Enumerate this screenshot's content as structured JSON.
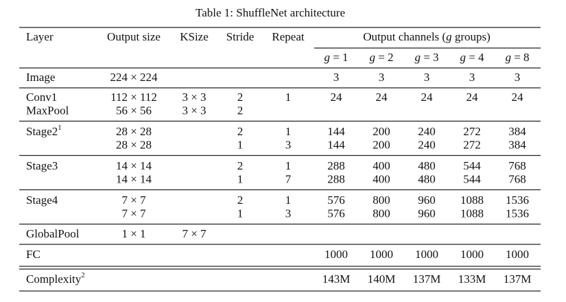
{
  "title": "Table 1: ShuffleNet architecture",
  "header": {
    "columns": [
      "Layer",
      "Output size",
      "KSize",
      "Stride",
      "Repeat"
    ],
    "group": {
      "pre": "Output channels (",
      "var": "g",
      "post": " groups)"
    },
    "subcolumns": [
      {
        "var": "g",
        "rest": " = 1"
      },
      {
        "var": "g",
        "rest": " = 2"
      },
      {
        "var": "g",
        "rest": " = 3"
      },
      {
        "var": "g",
        "rest": " = 4"
      },
      {
        "var": "g",
        "rest": " = 8"
      }
    ]
  },
  "body": [
    [
      [
        "Image",
        "224 × 224",
        null,
        null,
        null,
        "3",
        "3",
        "3",
        "3",
        "3"
      ]
    ],
    [
      [
        "Conv1",
        "112 × 112",
        "3 × 3",
        "2",
        "1",
        "24",
        "24",
        "24",
        "24",
        "24"
      ],
      [
        "MaxPool",
        "56 × 56",
        "3 × 3",
        "2",
        null,
        null,
        null,
        null,
        null,
        null
      ]
    ],
    [
      [
        {
          "text": "Stage2",
          "sup": "1"
        },
        "28 × 28",
        null,
        "2",
        "1",
        "144",
        "200",
        "240",
        "272",
        "384"
      ],
      [
        null,
        "28 × 28",
        null,
        "1",
        "3",
        "144",
        "200",
        "240",
        "272",
        "384"
      ]
    ],
    [
      [
        "Stage3",
        "14 × 14",
        null,
        "2",
        "1",
        "288",
        "400",
        "480",
        "544",
        "768"
      ],
      [
        null,
        "14 × 14",
        null,
        "1",
        "7",
        "288",
        "400",
        "480",
        "544",
        "768"
      ]
    ],
    [
      [
        "Stage4",
        "7 × 7",
        null,
        "2",
        "1",
        "576",
        "800",
        "960",
        "1088",
        "1536"
      ],
      [
        null,
        "7 × 7",
        null,
        "1",
        "3",
        "576",
        "800",
        "960",
        "1088",
        "1536"
      ]
    ],
    [
      [
        "GlobalPool",
        "1 × 1",
        "7 × 7",
        null,
        null,
        null,
        null,
        null,
        null,
        null
      ]
    ],
    [
      [
        "FC",
        null,
        null,
        null,
        null,
        "1000",
        "1000",
        "1000",
        "1000",
        "1000"
      ]
    ],
    [
      [
        {
          "text": "Complexity",
          "sup": "2"
        },
        null,
        null,
        null,
        null,
        "143M",
        "140M",
        "137M",
        "133M",
        "137M"
      ]
    ]
  ]
}
